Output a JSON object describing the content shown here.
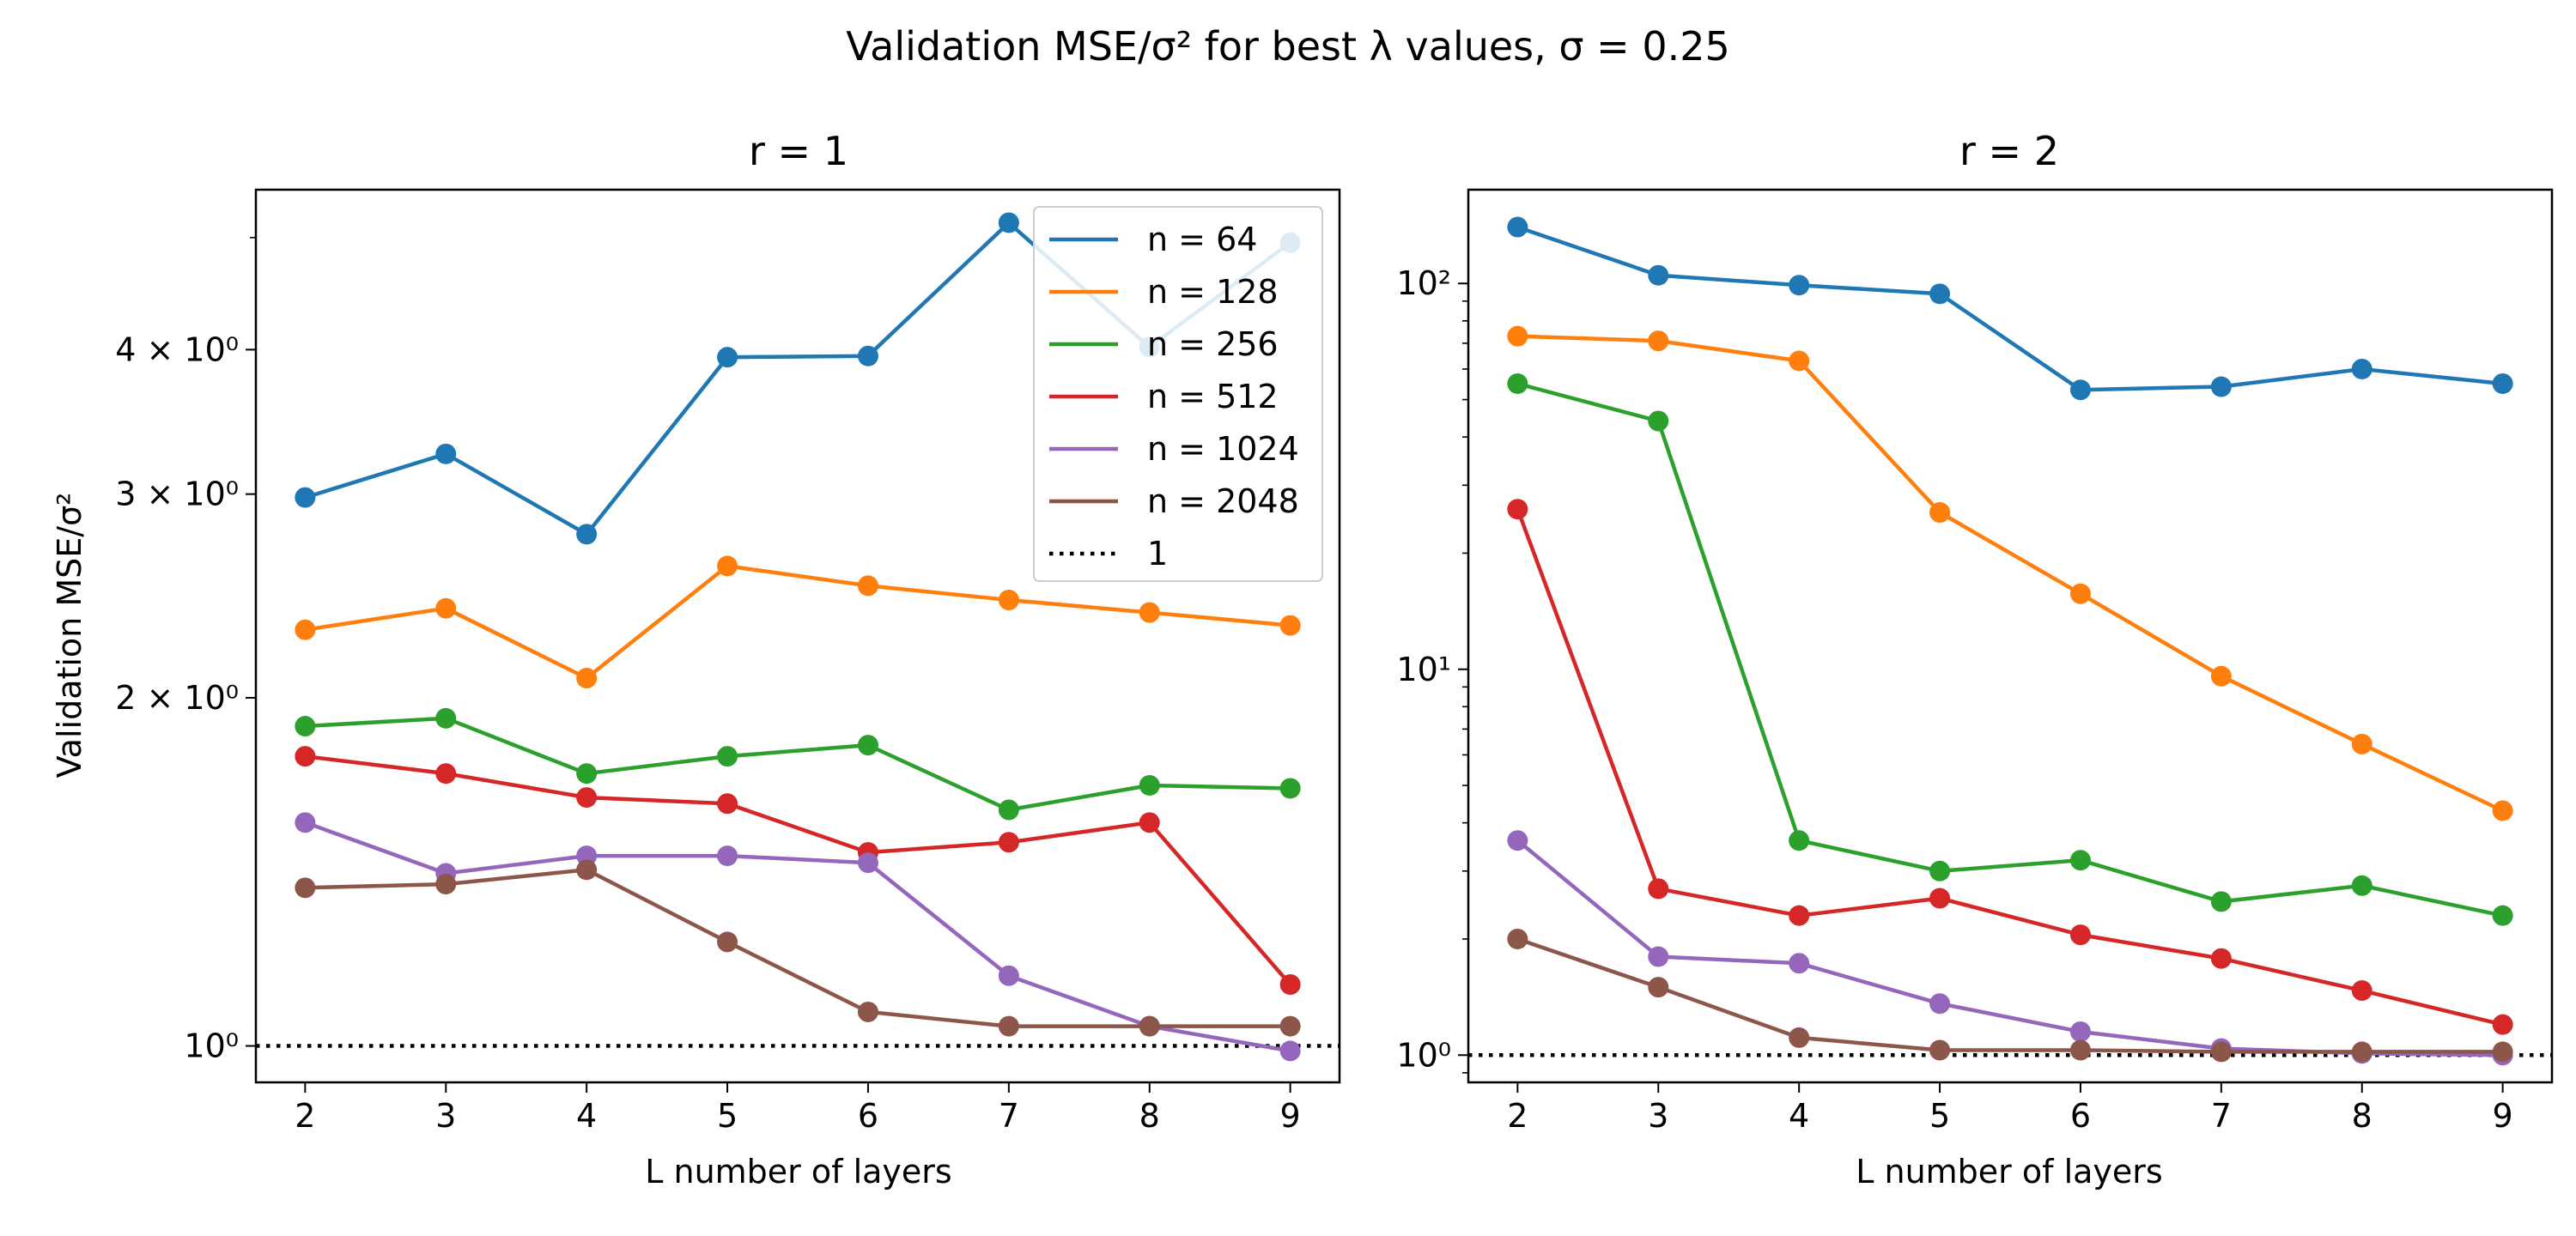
{
  "figure": {
    "suptitle": "Validation MSE/σ² for best λ values, σ = 0.25"
  },
  "colors": {
    "n64": "#1f77b4",
    "n128": "#ff7f0e",
    "n256": "#2ca02c",
    "n512": "#d62728",
    "n1024": "#9467bd",
    "n2048": "#8c564b",
    "reference": "#000000"
  },
  "chart_data": [
    {
      "type": "line",
      "title": "r = 1",
      "xlabel": "L number of layers",
      "ylabel": "Validation MSE/σ²",
      "yscale": "log",
      "x": [
        2,
        3,
        4,
        5,
        6,
        7,
        8,
        9
      ],
      "xlim": [
        1.65,
        9.35
      ],
      "ylim": [
        0.93,
        5.5
      ],
      "xticks": [
        "2",
        "3",
        "4",
        "5",
        "6",
        "7",
        "8",
        "9"
      ],
      "yticks": [
        {
          "value": 1,
          "label": "10⁰"
        },
        {
          "value": 2,
          "label": "2 × 10⁰"
        },
        {
          "value": 3,
          "label": "3 × 10⁰"
        },
        {
          "value": 4,
          "label": "4 × 10⁰"
        }
      ],
      "series": [
        {
          "name": "n = 64",
          "color": "#1f77b4",
          "values": [
            2.98,
            3.25,
            2.77,
            3.94,
            3.95,
            5.15,
            4.02,
            4.95
          ]
        },
        {
          "name": "n = 128",
          "color": "#ff7f0e",
          "values": [
            2.29,
            2.39,
            2.08,
            2.6,
            2.5,
            2.43,
            2.37,
            2.31
          ]
        },
        {
          "name": "n = 256",
          "color": "#2ca02c",
          "values": [
            1.89,
            1.92,
            1.72,
            1.78,
            1.82,
            1.6,
            1.68,
            1.67
          ]
        },
        {
          "name": "n = 512",
          "color": "#d62728",
          "values": [
            1.78,
            1.72,
            1.64,
            1.62,
            1.47,
            1.5,
            1.56,
            1.13
          ]
        },
        {
          "name": "n = 1024",
          "color": "#9467bd",
          "values": [
            1.56,
            1.41,
            1.46,
            1.46,
            1.44,
            1.15,
            1.04,
            0.99
          ]
        },
        {
          "name": "n = 2048",
          "color": "#8c564b",
          "values": [
            1.37,
            1.38,
            1.42,
            1.23,
            1.07,
            1.04,
            1.04,
            1.04
          ]
        }
      ],
      "reference": {
        "name": "1",
        "value": 1
      },
      "legend": {
        "position": "top-right"
      }
    },
    {
      "type": "line",
      "title": "r = 2",
      "xlabel": "L number of layers",
      "ylabel": "",
      "yscale": "log",
      "x": [
        2,
        3,
        4,
        5,
        6,
        7,
        8,
        9
      ],
      "xlim": [
        1.65,
        9.35
      ],
      "ylim": [
        0.85,
        175
      ],
      "xticks": [
        "2",
        "3",
        "4",
        "5",
        "6",
        "7",
        "8",
        "9"
      ],
      "yticks": [
        {
          "value": 1,
          "label": "10⁰"
        },
        {
          "value": 10,
          "label": "10¹"
        },
        {
          "value": 100,
          "label": "10²"
        }
      ],
      "series": [
        {
          "name": "n = 64",
          "color": "#1f77b4",
          "values": [
            140,
            105,
            99,
            94,
            53,
            54,
            60,
            55
          ]
        },
        {
          "name": "n = 128",
          "color": "#ff7f0e",
          "values": [
            73,
            71,
            63,
            25.5,
            15.7,
            9.6,
            6.4,
            4.3
          ]
        },
        {
          "name": "n = 256",
          "color": "#2ca02c",
          "values": [
            55,
            44,
            3.6,
            3.0,
            3.2,
            2.5,
            2.75,
            2.3
          ]
        },
        {
          "name": "n = 512",
          "color": "#d62728",
          "values": [
            26,
            2.7,
            2.3,
            2.55,
            2.05,
            1.78,
            1.47,
            1.2
          ]
        },
        {
          "name": "n = 1024",
          "color": "#9467bd",
          "values": [
            3.6,
            1.8,
            1.73,
            1.36,
            1.15,
            1.04,
            1.01,
            1.0
          ]
        },
        {
          "name": "n = 2048",
          "color": "#8c564b",
          "values": [
            2.0,
            1.5,
            1.11,
            1.03,
            1.03,
            1.02,
            1.02,
            1.02
          ]
        }
      ],
      "reference": {
        "name": "1",
        "value": 1
      }
    }
  ]
}
